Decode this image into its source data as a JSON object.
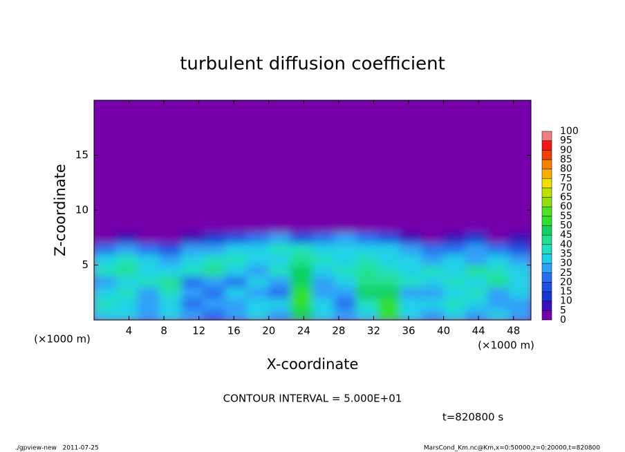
{
  "chart_data": {
    "type": "contour",
    "title": "turbulent diffusion coefficient",
    "x_label": "X-coordinate",
    "y_label": "Z-coordinate",
    "x_unit": "(×1000 m)",
    "y_unit": "(×1000 m)",
    "xlim": [
      0,
      50
    ],
    "ylim": [
      0,
      20
    ],
    "xticks": [
      4,
      8,
      12,
      16,
      20,
      24,
      28,
      32,
      36,
      40,
      44,
      48
    ],
    "yticks": [
      5,
      10,
      15
    ],
    "contour_interval": "CONTOUR INTERVAL = 5.000E+01",
    "time_label": "t=820800 s",
    "footer_left": "./gpview-new   2011-07-25",
    "footer_right": "MarsCond_Km.nc@Km,x=0:50000,z=0:20000,t=820800",
    "colorbar": {
      "levels": [
        0,
        5,
        10,
        15,
        20,
        25,
        30,
        35,
        40,
        45,
        50,
        55,
        60,
        65,
        70,
        75,
        80,
        85,
        90,
        95,
        100
      ],
      "colors": [
        "#7400aa",
        "#3a10b8",
        "#1838d0",
        "#2050e0",
        "#2870f0",
        "#30a0f8",
        "#20d0e8",
        "#20e0c0",
        "#20e090",
        "#10d060",
        "#30e030",
        "#50e020",
        "#90e010",
        "#c0e000",
        "#f0e000",
        "#f8b000",
        "#f88000",
        "#f04000",
        "#f01818",
        "#f08080"
      ]
    },
    "field": {
      "x_edges": [
        0,
        2.5,
        5,
        7.5,
        10,
        12.5,
        15,
        17.5,
        20,
        22.5,
        25,
        27.5,
        30,
        32.5,
        35,
        37.5,
        40,
        42.5,
        45,
        47.5,
        50
      ],
      "z_edges": [
        0,
        1,
        2,
        3,
        4,
        5,
        6,
        7,
        8,
        20
      ],
      "values": [
        [
          30,
          30,
          25,
          30,
          25,
          20,
          25,
          30,
          25,
          45,
          30,
          25,
          30,
          50,
          30,
          25,
          30,
          25,
          30,
          25
        ],
        [
          35,
          30,
          25,
          30,
          20,
          25,
          25,
          30,
          30,
          50,
          30,
          20,
          35,
          50,
          30,
          30,
          35,
          30,
          25,
          25
        ],
        [
          30,
          35,
          25,
          35,
          25,
          20,
          30,
          25,
          20,
          50,
          25,
          25,
          45,
          45,
          25,
          25,
          30,
          35,
          25,
          30
        ],
        [
          25,
          30,
          35,
          40,
          20,
          25,
          20,
          30,
          25,
          45,
          25,
          30,
          40,
          40,
          35,
          30,
          35,
          30,
          40,
          30
        ],
        [
          35,
          40,
          30,
          30,
          35,
          40,
          30,
          25,
          35,
          45,
          30,
          35,
          40,
          35,
          30,
          35,
          30,
          40,
          35,
          30
        ],
        [
          30,
          35,
          30,
          25,
          30,
          35,
          35,
          30,
          30,
          40,
          35,
          30,
          35,
          30,
          30,
          25,
          30,
          25,
          30,
          25
        ],
        [
          20,
          25,
          20,
          15,
          25,
          25,
          30,
          30,
          35,
          35,
          30,
          30,
          30,
          30,
          25,
          20,
          20,
          25,
          20,
          15
        ],
        [
          0,
          5,
          0,
          0,
          5,
          10,
          15,
          20,
          25,
          15,
          20,
          25,
          20,
          15,
          5,
          0,
          5,
          10,
          0,
          5
        ],
        [
          0,
          0,
          0,
          0,
          0,
          0,
          0,
          0,
          0,
          0,
          0,
          0,
          0,
          0,
          0,
          0,
          0,
          0,
          0,
          0
        ]
      ]
    }
  }
}
